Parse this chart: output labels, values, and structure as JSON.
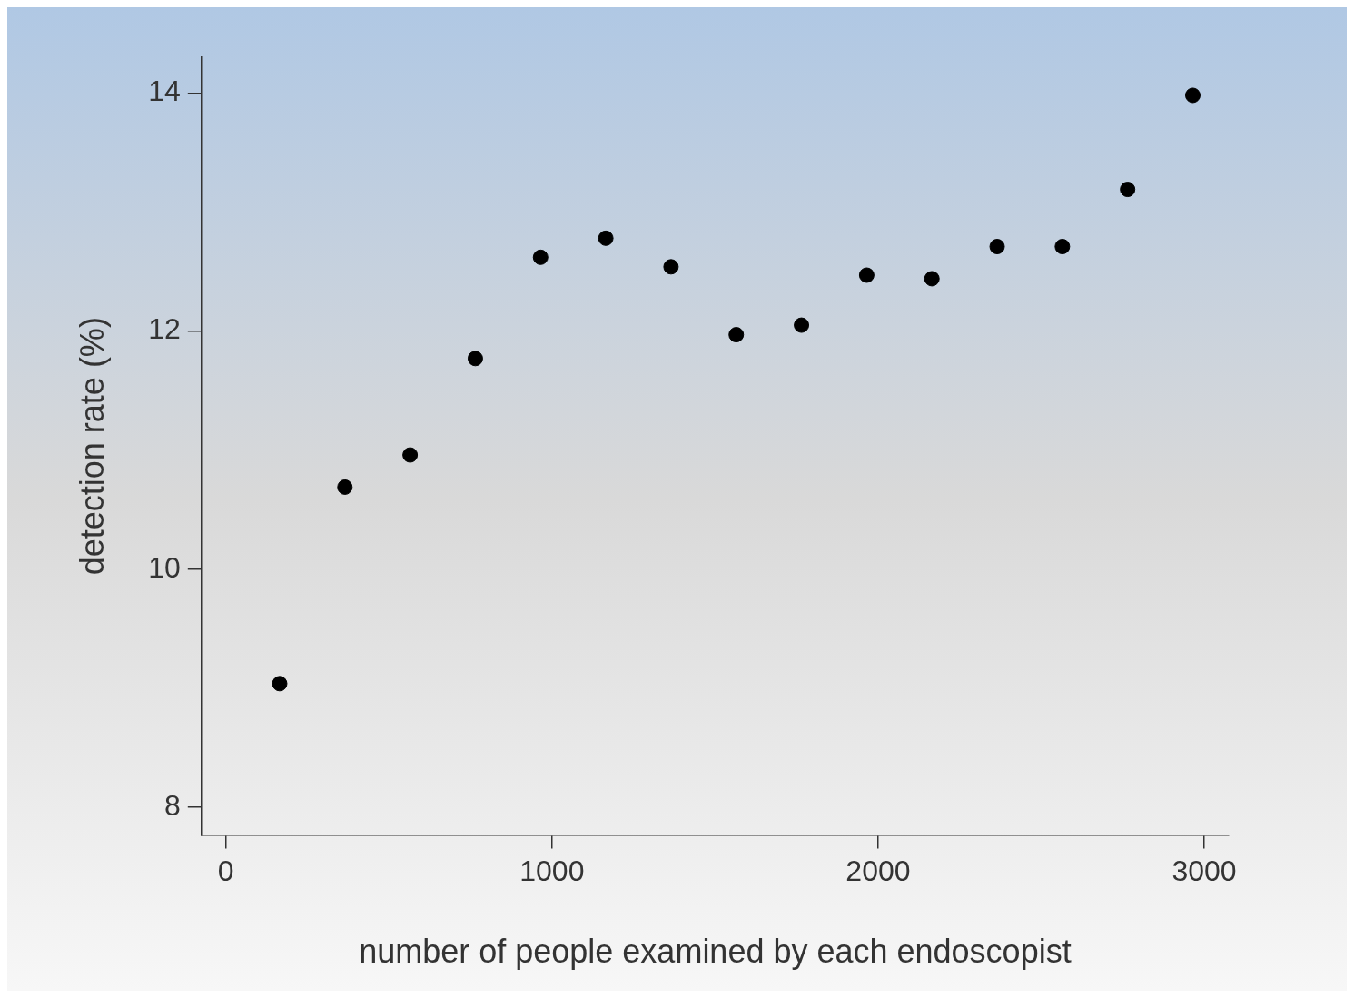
{
  "chart_data": {
    "type": "scatter",
    "xlabel": "number of people examined by each endoscopist",
    "ylabel": "detection rate (%)",
    "x": [
      165,
      365,
      565,
      765,
      965,
      1165,
      1365,
      1565,
      1765,
      1965,
      2165,
      2365,
      2565,
      2765,
      2965
    ],
    "series": [
      {
        "color": "#000000",
        "values": [
          9.04,
          10.69,
          10.96,
          11.77,
          12.62,
          12.78,
          12.54,
          11.97,
          12.05,
          12.47,
          12.44,
          12.71,
          12.71,
          13.19,
          13.98
        ]
      }
    ],
    "xlim": [
      -75,
      3075
    ],
    "xticks": [
      0,
      1000,
      2000,
      3000
    ],
    "ylim": [
      7.77,
      14.3
    ],
    "yticks": [
      8,
      10,
      12,
      14
    ],
    "grid": false,
    "legend": false,
    "marker": "circle"
  }
}
